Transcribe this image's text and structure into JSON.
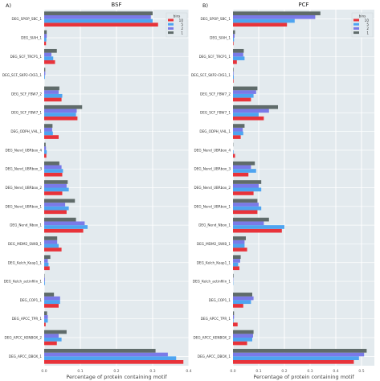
{
  "chart_data": [
    {
      "type": "bar",
      "orientation": "horizontal",
      "panel_label": "A)",
      "title": "BSF",
      "xlabel": "Percentage of protein containing motif",
      "ylabel": "",
      "xlim": [
        0,
        0.4
      ],
      "xticks": [
        "0.0",
        "0.1",
        "0.2",
        "0.3",
        "0.4"
      ],
      "grid": true,
      "legend_title": "bins",
      "legend_position": "top-right",
      "categories": [
        "DEG_SPOP_SBC_1",
        "DEG_SIAH_1",
        "DEG_SCF_TRCP1_1",
        "DEG_SCF_SKP2-CKS1_1",
        "DEG_SCF_FBW7_2",
        "DEG_SCF_FBW7_1",
        "DEG_ODPH_VHL_1",
        "DEG_Nend_UBRbox_4",
        "DEG_Nend_UBRbox_3",
        "DEG_Nend_UBRbox_2",
        "DEG_Nend_UBRbox_1",
        "DEG_Nend_Nbox_1",
        "DEG_MDM2_SWIB_1",
        "DEG_Kelch_Keap1_1",
        "DEG_Kelch_actinfilin_1",
        "DEG_COP1_1",
        "DEG_APCC_TPR_1",
        "DEG_APCC_KENBOX_2",
        "DEG_APCC_DBOX_1"
      ],
      "series": [
        {
          "name": "10",
          "color": "#e8333a",
          "values": [
            0.315,
            0.005,
            0.03,
            0.0,
            0.048,
            0.092,
            0.04,
            0.006,
            0.05,
            0.05,
            0.062,
            0.108,
            0.048,
            0.015,
            0.0,
            0.04,
            0.004,
            0.035,
            0.385
          ]
        },
        {
          "name": "5",
          "color": "#4ea4f0",
          "values": [
            0.3,
            0.006,
            0.025,
            0.002,
            0.05,
            0.088,
            0.024,
            0.007,
            0.052,
            0.068,
            0.068,
            0.12,
            0.04,
            0.012,
            0.002,
            0.044,
            0.01,
            0.048,
            0.365
          ]
        },
        {
          "name": "2",
          "color": "#7a7ae8",
          "values": [
            0.295,
            0.007,
            0.02,
            0.003,
            0.04,
            0.09,
            0.022,
            0.005,
            0.048,
            0.062,
            0.058,
            0.112,
            0.036,
            0.01,
            0.002,
            0.044,
            0.01,
            0.04,
            0.342
          ]
        },
        {
          "name": "1",
          "color": "#5f6b6a",
          "values": [
            0.3,
            0.007,
            0.035,
            0.003,
            0.042,
            0.105,
            0.023,
            0.004,
            0.042,
            0.065,
            0.085,
            0.088,
            0.036,
            0.017,
            0.001,
            0.027,
            0.008,
            0.062,
            0.308
          ]
        }
      ]
    },
    {
      "type": "bar",
      "orientation": "horizontal",
      "panel_label": "B)",
      "title": "PCF",
      "xlabel": "Percentage of protein containing motif",
      "ylabel": "",
      "xlim": [
        0,
        0.55
      ],
      "xticks": [
        "0.0",
        "0.1",
        "0.2",
        "0.3",
        "0.4",
        "0.5"
      ],
      "grid": true,
      "legend_title": "bins",
      "legend_position": "top-right",
      "categories": [
        "DEG_SPOP_SBC_1",
        "DEG_SIAH_1",
        "DEG_SCF_TRCP1_1",
        "DEG_SCF_SKP2-CKS1_1",
        "DEG_SCF_FBW7_2",
        "DEG_SCF_FBW7_1",
        "DEG_ODPH_VHL_1",
        "DEG_Nend_UBRbox_4",
        "DEG_Nend_UBRbox_3",
        "DEG_Nend_UBRbox_2",
        "DEG_Nend_UBRbox_1",
        "DEG_Nend_Nbox_1",
        "DEG_MDM2_SWIB_1",
        "DEG_Kelch_Keap1_1",
        "DEG_Kelch_actinfilin_1",
        "DEG_COP1_1",
        "DEG_APCC_TPR_1",
        "DEG_APCC_KENBOX_2",
        "DEG_APCC_DBOX_1"
      ],
      "series": [
        {
          "name": "10",
          "color": "#e8333a",
          "values": [
            0.21,
            0.002,
            0.015,
            0.002,
            0.07,
            0.12,
            0.03,
            0.008,
            0.06,
            0.08,
            0.095,
            0.19,
            0.055,
            0.025,
            0.0,
            0.04,
            0.018,
            0.055,
            0.47
          ]
        },
        {
          "name": "5",
          "color": "#4ea4f0",
          "values": [
            0.24,
            0.004,
            0.045,
            0.003,
            0.08,
            0.1,
            0.04,
            0.002,
            0.09,
            0.11,
            0.11,
            0.2,
            0.045,
            0.02,
            0.001,
            0.07,
            0.002,
            0.075,
            0.49
          ]
        },
        {
          "name": "2",
          "color": "#7a7ae8",
          "values": [
            0.32,
            0.006,
            0.04,
            0.002,
            0.09,
            0.14,
            0.038,
            0.0,
            0.07,
            0.1,
            0.1,
            0.12,
            0.045,
            0.028,
            0.001,
            0.08,
            0.004,
            0.078,
            0.51
          ]
        },
        {
          "name": "1",
          "color": "#5f6b6a",
          "values": [
            0.34,
            0.008,
            0.042,
            0.002,
            0.095,
            0.175,
            0.045,
            0.001,
            0.085,
            0.11,
            0.095,
            0.14,
            0.05,
            0.03,
            0.002,
            0.075,
            0.004,
            0.08,
            0.52
          ]
        }
      ]
    }
  ]
}
